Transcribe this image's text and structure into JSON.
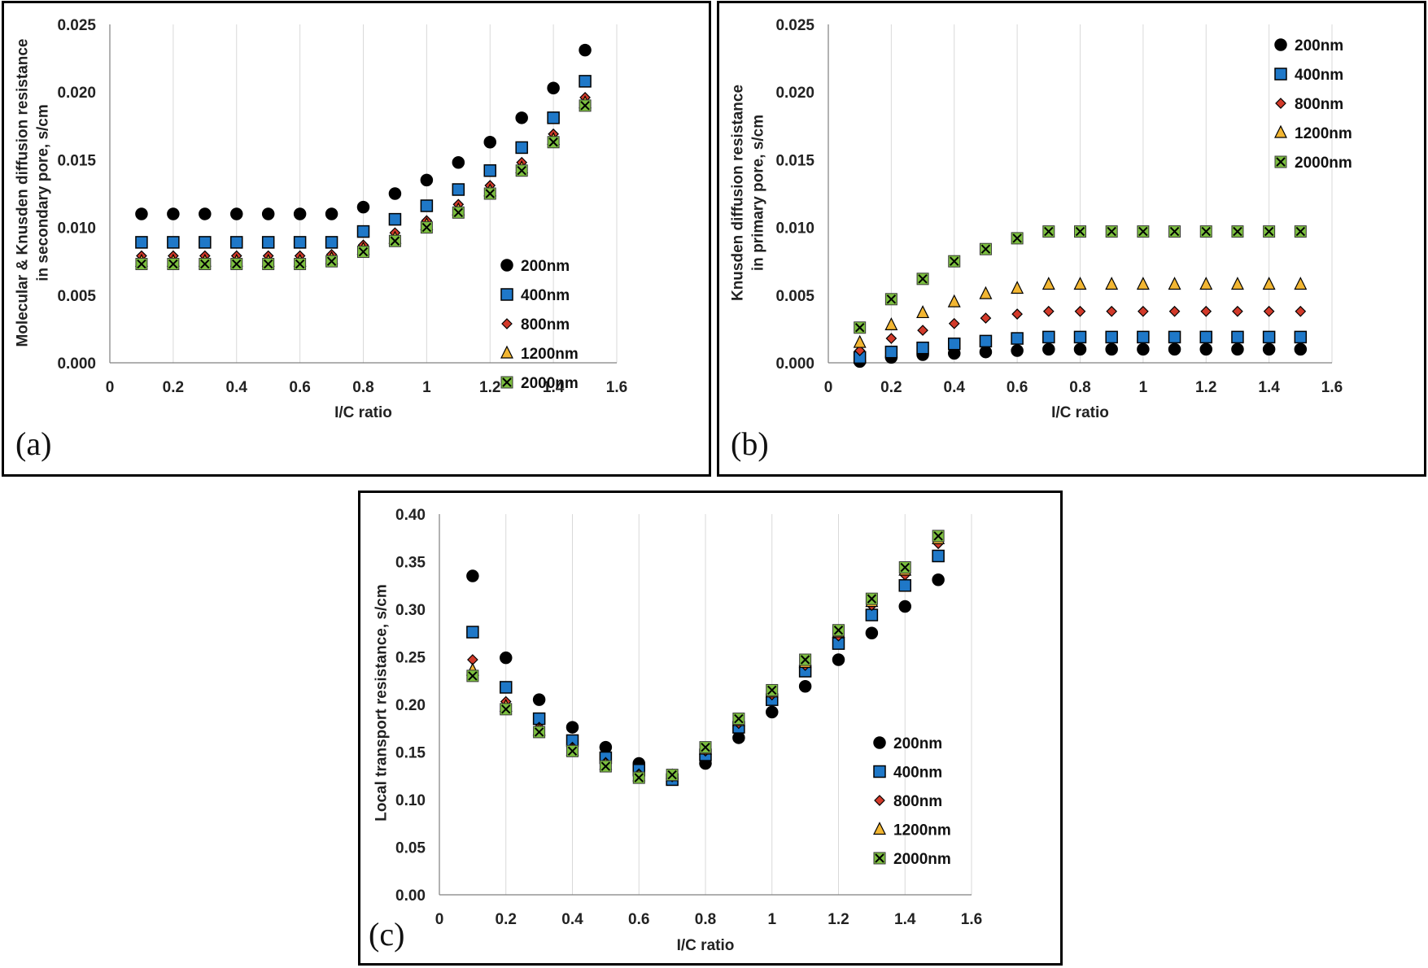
{
  "colors": {
    "200nm": "#000000",
    "400nm": "#1f78c8",
    "800nm": "#d23a2a",
    "1200nm": "#f2b632",
    "2000nm": "#7cbf3f",
    "grid": "#d9d9d9",
    "axis": "#808080"
  },
  "chart_data": [
    {
      "panel": "(a)",
      "type": "scatter",
      "xlabel": "I/C ratio",
      "ylabel": [
        "Molecular & Knusden diffusion resistance",
        "in secondary pore, s/cm"
      ],
      "xlim": [
        0,
        1.6
      ],
      "ylim": [
        0,
        0.025
      ],
      "x_ticks": [
        "0",
        "0.2",
        "0.4",
        "0.6",
        "0.8",
        "1",
        "1.2",
        "1.4",
        "1.6"
      ],
      "y_ticks": [
        "0.000",
        "0.005",
        "0.010",
        "0.015",
        "0.020",
        "0.025"
      ],
      "grid": "vertical",
      "legend": "bottom-right",
      "x": [
        0.1,
        0.2,
        0.3,
        0.4,
        0.5,
        0.6,
        0.7,
        0.8,
        0.9,
        1.0,
        1.1,
        1.2,
        1.3,
        1.4,
        1.5
      ],
      "series": [
        {
          "name": "200nm",
          "marker": "circle",
          "values": [
            0.011,
            0.011,
            0.011,
            0.011,
            0.011,
            0.011,
            0.011,
            0.0115,
            0.0125,
            0.0135,
            0.0148,
            0.0163,
            0.0181,
            0.0203,
            0.0231
          ]
        },
        {
          "name": "400nm",
          "marker": "square",
          "values": [
            0.0089,
            0.0089,
            0.0089,
            0.0089,
            0.0089,
            0.0089,
            0.0089,
            0.0097,
            0.0106,
            0.0116,
            0.0128,
            0.0142,
            0.0159,
            0.0181,
            0.0208
          ]
        },
        {
          "name": "800nm",
          "marker": "diamond",
          "values": [
            0.0079,
            0.0079,
            0.0079,
            0.0079,
            0.0079,
            0.0079,
            0.008,
            0.0087,
            0.0096,
            0.0105,
            0.0117,
            0.0131,
            0.0148,
            0.0169,
            0.0196
          ]
        },
        {
          "name": "1200nm",
          "marker": "triangle",
          "values": [
            0.0075,
            0.0075,
            0.0075,
            0.0075,
            0.0075,
            0.0075,
            0.0077,
            0.0084,
            0.0092,
            0.0102,
            0.0113,
            0.0127,
            0.0144,
            0.0165,
            0.0192
          ]
        },
        {
          "name": "2000nm",
          "marker": "xsquare",
          "values": [
            0.0073,
            0.0073,
            0.0073,
            0.0073,
            0.0073,
            0.0073,
            0.0075,
            0.0082,
            0.009,
            0.01,
            0.0111,
            0.0125,
            0.0142,
            0.0163,
            0.019
          ]
        }
      ]
    },
    {
      "panel": "(b)",
      "type": "scatter",
      "xlabel": "I/C ratio",
      "ylabel": [
        "Knusden diffusion resistance",
        "in primary pore, s/cm"
      ],
      "xlim": [
        0,
        1.6
      ],
      "ylim": [
        0,
        0.025
      ],
      "x_ticks": [
        "0",
        "0.2",
        "0.4",
        "0.6",
        "0.8",
        "1",
        "1.2",
        "1.4",
        "1.6"
      ],
      "y_ticks": [
        "0.000",
        "0.005",
        "0.010",
        "0.015",
        "0.020",
        "0.025"
      ],
      "grid": "vertical",
      "legend": "top-right",
      "x": [
        0.1,
        0.2,
        0.3,
        0.4,
        0.5,
        0.6,
        0.7,
        0.8,
        0.9,
        1.0,
        1.1,
        1.2,
        1.3,
        1.4,
        1.5
      ],
      "series": [
        {
          "name": "200nm",
          "marker": "circle",
          "values": [
            0.0001,
            0.0004,
            0.0006,
            0.0007,
            0.0008,
            0.0009,
            0.001,
            0.001,
            0.001,
            0.001,
            0.001,
            0.001,
            0.001,
            0.001,
            0.001
          ]
        },
        {
          "name": "400nm",
          "marker": "square",
          "values": [
            0.0004,
            0.0008,
            0.0011,
            0.0014,
            0.0016,
            0.0018,
            0.0019,
            0.0019,
            0.0019,
            0.0019,
            0.0019,
            0.0019,
            0.0019,
            0.0019,
            0.0019
          ]
        },
        {
          "name": "800nm",
          "marker": "diamond",
          "values": [
            0.0009,
            0.0018,
            0.0024,
            0.0029,
            0.0033,
            0.0036,
            0.0038,
            0.0038,
            0.0038,
            0.0038,
            0.0038,
            0.0038,
            0.0038,
            0.0038,
            0.0038
          ]
        },
        {
          "name": "1200nm",
          "marker": "triangle",
          "values": [
            0.0015,
            0.0028,
            0.0037,
            0.0045,
            0.0051,
            0.0055,
            0.0058,
            0.0058,
            0.0058,
            0.0058,
            0.0058,
            0.0058,
            0.0058,
            0.0058,
            0.0058
          ]
        },
        {
          "name": "2000nm",
          "marker": "xsquare",
          "values": [
            0.0026,
            0.0047,
            0.0062,
            0.0075,
            0.0084,
            0.0092,
            0.0097,
            0.0097,
            0.0097,
            0.0097,
            0.0097,
            0.0097,
            0.0097,
            0.0097,
            0.0097
          ]
        }
      ]
    },
    {
      "panel": "(c)",
      "type": "scatter",
      "xlabel": "I/C ratio",
      "ylabel": [
        "Local transport resistance, s/cm"
      ],
      "xlim": [
        0,
        1.6
      ],
      "ylim": [
        0,
        0.4
      ],
      "x_ticks": [
        "0",
        "0.2",
        "0.4",
        "0.6",
        "0.8",
        "1",
        "1.2",
        "1.4",
        "1.6"
      ],
      "y_ticks": [
        "0.00",
        "0.05",
        "0.10",
        "0.15",
        "0.20",
        "0.25",
        "0.30",
        "0.35",
        "0.40"
      ],
      "grid": "vertical",
      "legend": "bottom-right",
      "x": [
        0.1,
        0.2,
        0.3,
        0.4,
        0.5,
        0.6,
        0.7,
        0.8,
        0.9,
        1.0,
        1.1,
        1.2,
        1.3,
        1.4,
        1.5
      ],
      "series": [
        {
          "name": "200nm",
          "marker": "circle",
          "values": [
            0.335,
            0.249,
            0.205,
            0.176,
            0.155,
            0.138,
            0.122,
            0.138,
            0.165,
            0.192,
            0.219,
            0.247,
            0.275,
            0.303,
            0.331
          ]
        },
        {
          "name": "400nm",
          "marker": "square",
          "values": [
            0.276,
            0.218,
            0.185,
            0.162,
            0.144,
            0.131,
            0.121,
            0.147,
            0.176,
            0.205,
            0.235,
            0.264,
            0.294,
            0.325,
            0.356
          ]
        },
        {
          "name": "800nm",
          "marker": "diamond",
          "values": [
            0.247,
            0.203,
            0.176,
            0.155,
            0.139,
            0.127,
            0.124,
            0.151,
            0.18,
            0.21,
            0.241,
            0.272,
            0.304,
            0.336,
            0.369
          ]
        },
        {
          "name": "1200nm",
          "marker": "triangle",
          "values": [
            0.236,
            0.198,
            0.173,
            0.152,
            0.137,
            0.125,
            0.125,
            0.153,
            0.183,
            0.213,
            0.244,
            0.276,
            0.308,
            0.341,
            0.374
          ]
        },
        {
          "name": "2000nm",
          "marker": "xsquare",
          "values": [
            0.23,
            0.195,
            0.171,
            0.151,
            0.135,
            0.123,
            0.126,
            0.155,
            0.185,
            0.215,
            0.247,
            0.278,
            0.311,
            0.344,
            0.377
          ]
        }
      ]
    }
  ]
}
